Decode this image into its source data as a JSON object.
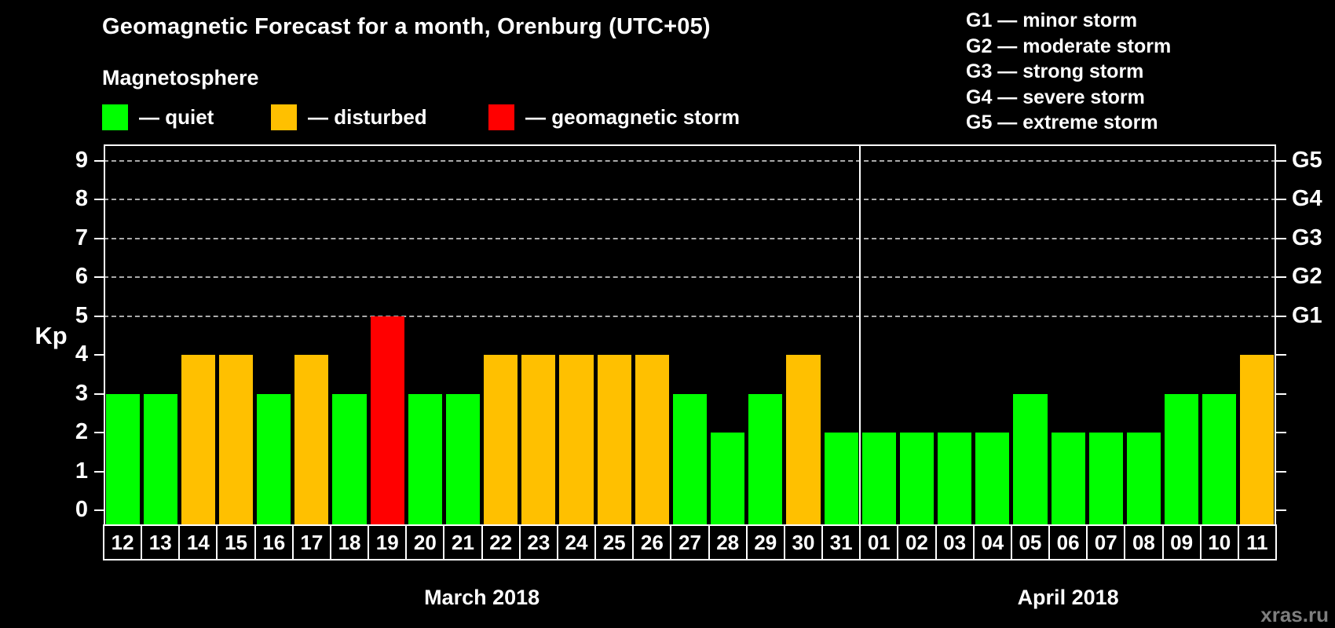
{
  "header": {
    "title": "Geomagnetic Forecast for a month, Orenburg (UTC+05)",
    "subtitle": "Magnetosphere",
    "legend": [
      {
        "key": "quiet",
        "label": "— quiet",
        "color": "#00ff00"
      },
      {
        "key": "disturbed",
        "label": "— disturbed",
        "color": "#ffc000"
      },
      {
        "key": "storm",
        "label": "— geomagnetic storm",
        "color": "#ff0000"
      }
    ],
    "g_legend": [
      "G1 — minor storm",
      "G2 — moderate storm",
      "G3 — strong storm",
      "G4 — severe storm",
      "G5 — extreme storm"
    ]
  },
  "colors": {
    "quiet": "#00ff00",
    "disturbed": "#ffc000",
    "storm": "#ff0000",
    "grid": "#aaaaaa",
    "axis": "#ffffff",
    "background": "#000000",
    "watermark": "#7e7e7e"
  },
  "chart_data": {
    "type": "bar",
    "title": "Geomagnetic Forecast for a month, Orenburg (UTC+05)",
    "xlabel": "",
    "ylabel": "Kp",
    "ylim": [
      0,
      9
    ],
    "y_ticks": [
      0,
      1,
      2,
      3,
      4,
      5,
      6,
      7,
      8,
      9
    ],
    "gridlines": [
      5,
      6,
      7,
      8,
      9
    ],
    "legend_position": "top",
    "grid": "dashed-horizontal",
    "right_axis": [
      {
        "kp": 5,
        "label": "G1"
      },
      {
        "kp": 6,
        "label": "G2"
      },
      {
        "kp": 7,
        "label": "G3"
      },
      {
        "kp": 8,
        "label": "G4"
      },
      {
        "kp": 9,
        "label": "G5"
      }
    ],
    "months": [
      {
        "label": "March 2018",
        "days": [
          {
            "day": "12",
            "kp": 3,
            "state": "quiet"
          },
          {
            "day": "13",
            "kp": 3,
            "state": "quiet"
          },
          {
            "day": "14",
            "kp": 4,
            "state": "disturbed"
          },
          {
            "day": "15",
            "kp": 4,
            "state": "disturbed"
          },
          {
            "day": "16",
            "kp": 3,
            "state": "quiet"
          },
          {
            "day": "17",
            "kp": 4,
            "state": "disturbed"
          },
          {
            "day": "18",
            "kp": 3,
            "state": "quiet"
          },
          {
            "day": "19",
            "kp": 5,
            "state": "storm"
          },
          {
            "day": "20",
            "kp": 3,
            "state": "quiet"
          },
          {
            "day": "21",
            "kp": 3,
            "state": "quiet"
          },
          {
            "day": "22",
            "kp": 4,
            "state": "disturbed"
          },
          {
            "day": "23",
            "kp": 4,
            "state": "disturbed"
          },
          {
            "day": "24",
            "kp": 4,
            "state": "disturbed"
          },
          {
            "day": "25",
            "kp": 4,
            "state": "disturbed"
          },
          {
            "day": "26",
            "kp": 4,
            "state": "disturbed"
          },
          {
            "day": "27",
            "kp": 3,
            "state": "quiet"
          },
          {
            "day": "28",
            "kp": 2,
            "state": "quiet"
          },
          {
            "day": "29",
            "kp": 3,
            "state": "quiet"
          },
          {
            "day": "30",
            "kp": 4,
            "state": "disturbed"
          },
          {
            "day": "31",
            "kp": 2,
            "state": "quiet"
          }
        ]
      },
      {
        "label": "April 2018",
        "days": [
          {
            "day": "01",
            "kp": 2,
            "state": "quiet"
          },
          {
            "day": "02",
            "kp": 2,
            "state": "quiet"
          },
          {
            "day": "03",
            "kp": 2,
            "state": "quiet"
          },
          {
            "day": "04",
            "kp": 2,
            "state": "quiet"
          },
          {
            "day": "05",
            "kp": 3,
            "state": "quiet"
          },
          {
            "day": "06",
            "kp": 2,
            "state": "quiet"
          },
          {
            "day": "07",
            "kp": 2,
            "state": "quiet"
          },
          {
            "day": "08",
            "kp": 2,
            "state": "quiet"
          },
          {
            "day": "09",
            "kp": 3,
            "state": "quiet"
          },
          {
            "day": "10",
            "kp": 3,
            "state": "quiet"
          },
          {
            "day": "11",
            "kp": 4,
            "state": "disturbed"
          }
        ]
      }
    ]
  },
  "watermark": "xras.ru"
}
